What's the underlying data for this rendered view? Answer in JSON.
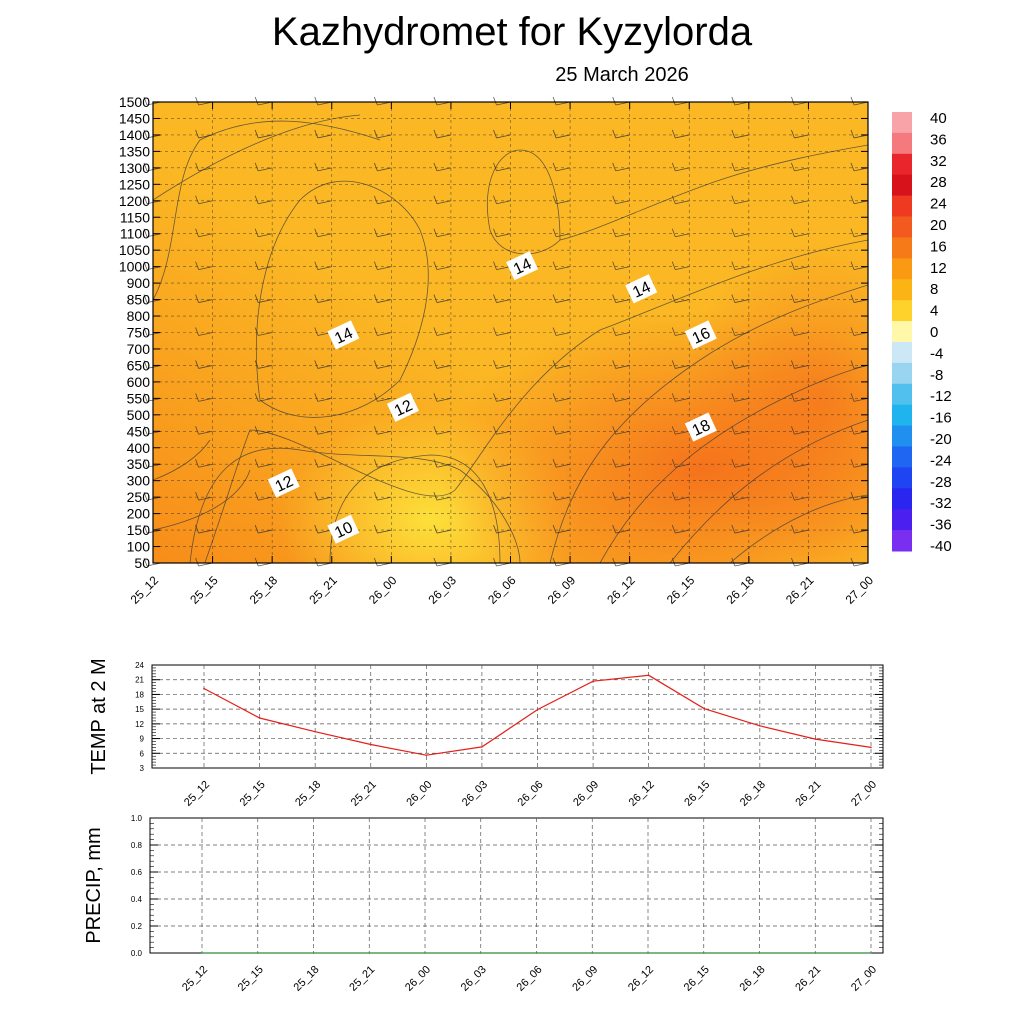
{
  "header": {
    "title": "Kazhydromet  for Kyzylorda",
    "date": "25 March 2026"
  },
  "chart_data": [
    {
      "type": "heatmap",
      "title": "",
      "xlabel": "",
      "ylabel": "",
      "x_ticks": [
        "25_12",
        "25_15",
        "25_18",
        "25_21",
        "26_00",
        "26_03",
        "26_06",
        "26_09",
        "26_12",
        "26_15",
        "26_18",
        "26_21",
        "27_00"
      ],
      "y_ticks": [
        50,
        100,
        150,
        200,
        250,
        300,
        350,
        400,
        450,
        500,
        550,
        600,
        650,
        700,
        750,
        800,
        850,
        900,
        1000,
        1050,
        1100,
        1150,
        1200,
        1250,
        1300,
        1350,
        1400,
        1450,
        1500
      ],
      "contour_labels": [
        {
          "text": "14",
          "x": "26_06",
          "y": 1000
        },
        {
          "text": "14",
          "x": "26_12",
          "y": 880
        },
        {
          "text": "14",
          "x": "25_21",
          "y": 740
        },
        {
          "text": "16",
          "x": "26_15",
          "y": 740
        },
        {
          "text": "12",
          "x": "26_00",
          "y": 520
        },
        {
          "text": "18",
          "x": "26_15",
          "y": 460
        },
        {
          "text": "12",
          "x": "25_18",
          "y": 290
        },
        {
          "text": "10",
          "x": "25_21",
          "y": 150
        }
      ],
      "colorbar": {
        "labels": [
          "40",
          "36",
          "32",
          "28",
          "24",
          "20",
          "16",
          "12",
          "8",
          "4",
          "0",
          "-4",
          "-8",
          "-12",
          "-16",
          "-20",
          "-24",
          "-28",
          "-32",
          "-36",
          "-40"
        ],
        "colors": [
          "#f7a3a8",
          "#f57a7d",
          "#e8262b",
          "#d8121a",
          "#ef3a22",
          "#f35a1f",
          "#f77a18",
          "#f99a12",
          "#fcb415",
          "#fed22a",
          "#fff8a8",
          "#cce8f6",
          "#99d4f0",
          "#52c0ef",
          "#1fb4ee",
          "#1f8ff0",
          "#1f66f2",
          "#1f45f2",
          "#2a26f0",
          "#4a1ff0",
          "#7a2ff0"
        ]
      },
      "field_colors": {
        "cool": "#fde03a",
        "mid": "#fbb824",
        "warm": "#f78d1a",
        "hot": "#f4661a"
      }
    },
    {
      "type": "line",
      "ylabel": "TEMP at 2 M",
      "x": [
        "25_12",
        "25_15",
        "25_18",
        "25_21",
        "26_00",
        "26_03",
        "26_06",
        "26_09",
        "26_12",
        "26_15",
        "26_18",
        "26_21",
        "27_00"
      ],
      "series": [
        {
          "values": [
            19.2,
            13.2,
            10.4,
            7.8,
            5.6,
            7.3,
            14.9,
            20.7,
            21.9,
            15.1,
            11.6,
            8.9,
            7.2
          ],
          "color": "#e3201a"
        }
      ],
      "y_ticks": [
        3,
        6,
        9,
        12,
        15,
        18,
        21,
        24
      ],
      "ylim": [
        3,
        24
      ],
      "grid": true
    },
    {
      "type": "line",
      "ylabel": "PRECIP, mm",
      "x": [
        "25_12",
        "25_15",
        "25_18",
        "25_21",
        "26_00",
        "26_03",
        "26_06",
        "26_09",
        "26_12",
        "26_15",
        "26_18",
        "26_21",
        "27_00"
      ],
      "series": [
        {
          "values": [
            0,
            0,
            0,
            0,
            0,
            0,
            0,
            0,
            0,
            0,
            0,
            0,
            0
          ],
          "color": "#2e8b3a"
        }
      ],
      "y_ticks": [
        "0.0",
        "0.2",
        "0.4",
        "0.6",
        "0.8",
        "1.0"
      ],
      "ylim": [
        0,
        1
      ],
      "grid": true
    }
  ]
}
